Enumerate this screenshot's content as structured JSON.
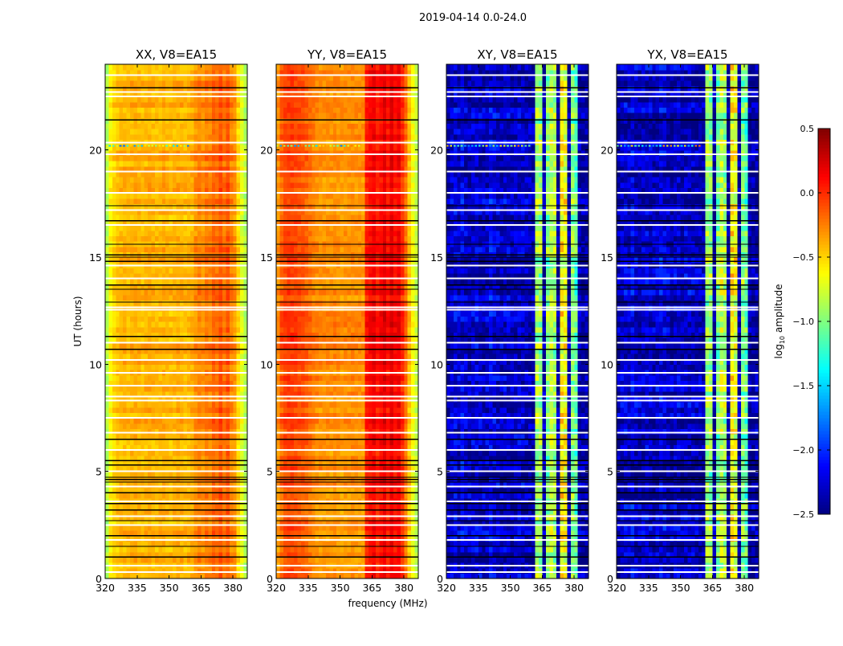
{
  "chart_data": {
    "type": "heatmap",
    "title": "2019-04-14 0.0-24.0",
    "xlabel": "frequency (MHz)",
    "ylabel": "UT (hours)",
    "xlim": [
      320,
      386.7
    ],
    "ylim": [
      0,
      24
    ],
    "xticks": [
      320,
      335,
      350,
      365,
      380
    ],
    "yticks": [
      0,
      5,
      10,
      15,
      20
    ],
    "colormap": "jet",
    "colorbar": {
      "label_main": "log",
      "label_sub": "10",
      "label_rest": " amplitude",
      "range": [
        -2.5,
        0.5
      ],
      "ticks": [
        0.5,
        0.0,
        -0.5,
        -1.0,
        -1.5,
        -2.0,
        -2.5
      ],
      "tick_labels": [
        "0.5",
        "0.0",
        "−0.5",
        "−1.0",
        "−1.5",
        "−2.0",
        "−2.5"
      ],
      "placement": "right"
    },
    "channel_edges_mhz": [
      320,
      386.7
    ],
    "n_channels": 40,
    "panels": [
      {
        "title": "XX, V8=EA15",
        "mean_spectrum": [
          -0.85,
          -0.6,
          -0.5,
          -0.45,
          -0.42,
          -0.4,
          -0.42,
          -0.4,
          -0.38,
          -0.4,
          -0.42,
          -0.4,
          -0.38,
          -0.4,
          -0.42,
          -0.4,
          -0.38,
          -0.4,
          -0.42,
          -0.4,
          -0.38,
          -0.4,
          -0.42,
          -0.4,
          -0.38,
          -0.3,
          -0.25,
          -0.3,
          -0.22,
          -0.25,
          -0.15,
          -0.2,
          -0.1,
          -0.2,
          -0.12,
          -0.25,
          -0.3,
          -0.5,
          -0.7,
          -0.85
        ]
      },
      {
        "title": "YY, V8=EA15",
        "mean_spectrum": [
          -0.3,
          -0.15,
          -0.08,
          -0.05,
          -0.05,
          -0.08,
          -0.1,
          -0.12,
          -0.15,
          -0.2,
          -0.25,
          -0.28,
          -0.3,
          -0.3,
          -0.3,
          -0.3,
          -0.28,
          -0.3,
          -0.32,
          -0.3,
          -0.3,
          -0.28,
          -0.3,
          -0.3,
          -0.3,
          0.05,
          0.1,
          0.15,
          0.05,
          0.12,
          0.2,
          0.08,
          0.2,
          0.1,
          0.15,
          0.0,
          -0.2,
          -0.45,
          -0.65,
          -0.8
        ]
      },
      {
        "title": "XY, V8=EA15",
        "mean_spectrum": [
          -2.4,
          -2.3,
          -2.25,
          -2.3,
          -2.2,
          -2.3,
          -2.35,
          -2.3,
          -2.25,
          -2.3,
          -2.35,
          -2.3,
          -2.2,
          -2.25,
          -2.3,
          -2.35,
          -2.3,
          -2.3,
          -2.35,
          -2.3,
          -2.3,
          -2.3,
          -2.35,
          -2.35,
          -2.4,
          -0.9,
          -0.95,
          -2.4,
          -1.0,
          -0.8,
          -0.9,
          -2.4,
          -0.6,
          -0.7,
          -2.4,
          -1.0,
          -1.1,
          -2.4,
          -2.4,
          -2.4
        ]
      },
      {
        "title": "YX, V8=EA15",
        "mean_spectrum": [
          -2.4,
          -2.3,
          -2.25,
          -2.3,
          -2.2,
          -2.3,
          -2.35,
          -2.3,
          -2.25,
          -2.3,
          -2.35,
          -2.3,
          -2.2,
          -2.25,
          -2.3,
          -2.35,
          -2.3,
          -2.3,
          -2.35,
          -2.3,
          -2.3,
          -2.3,
          -2.35,
          -2.35,
          -2.4,
          -0.9,
          -0.95,
          -2.4,
          -1.0,
          -0.8,
          -0.9,
          -2.4,
          -0.6,
          -0.7,
          -2.4,
          -1.0,
          -1.1,
          -2.4,
          -2.4,
          -2.4
        ]
      }
    ],
    "flagged_hours_white": [
      0.3,
      0.6,
      1.8,
      2.5,
      2.9,
      3.6,
      4.3,
      5.0,
      6.0,
      6.8,
      7.5,
      8.3,
      8.5,
      9.0,
      9.6,
      10.2,
      11.0,
      12.55,
      12.65,
      14.0,
      14.6,
      16.5,
      17.2,
      18.0,
      19.0,
      19.8,
      20.35,
      22.5,
      22.7,
      23.5
    ],
    "flagged_hours_black": [
      1.0,
      1.5,
      2.0,
      2.7,
      3.2,
      3.5,
      4.0,
      4.5,
      4.62,
      4.72,
      5.3,
      5.5,
      6.5,
      10.7,
      11.3,
      12.9,
      13.5,
      13.7,
      14.8,
      15.0,
      15.1,
      15.6,
      16.7,
      17.4,
      21.4,
      22.9
    ],
    "rfi_hour": 20.2
  }
}
